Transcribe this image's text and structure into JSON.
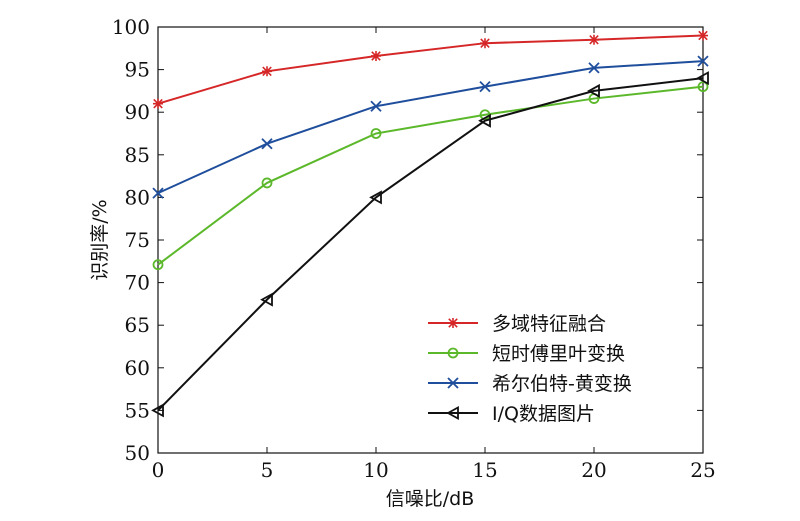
{
  "chart_data": {
    "type": "line",
    "title": "",
    "xlabel": "信噪比/dB",
    "ylabel": "识别率/%",
    "xlim": [
      0,
      25
    ],
    "ylim": [
      50,
      100
    ],
    "xticks": [
      0,
      5,
      10,
      15,
      20,
      25
    ],
    "yticks": [
      50,
      55,
      60,
      65,
      70,
      75,
      80,
      85,
      90,
      95,
      100
    ],
    "x": [
      0,
      5,
      10,
      15,
      20,
      25
    ],
    "grid": false,
    "legend_position": "bottom-right",
    "series": [
      {
        "name": "多域特征融合",
        "color": "#d62728",
        "marker": "star",
        "values": [
          91.0,
          94.8,
          96.6,
          98.1,
          98.5,
          99.0
        ]
      },
      {
        "name": "短时傅里叶变换",
        "color": "#5cb82b",
        "marker": "circle",
        "values": [
          72.1,
          81.7,
          87.5,
          89.7,
          91.6,
          93.0
        ]
      },
      {
        "name": "希尔伯特-黄变换",
        "color": "#1f4e9c",
        "marker": "x",
        "values": [
          80.5,
          86.3,
          90.7,
          93.0,
          95.2,
          96.0
        ]
      },
      {
        "name": "I/Q数据图片",
        "color": "#111111",
        "marker": "triangle-left",
        "values": [
          55.0,
          68.0,
          80.0,
          89.0,
          92.5,
          94.0
        ]
      }
    ]
  }
}
